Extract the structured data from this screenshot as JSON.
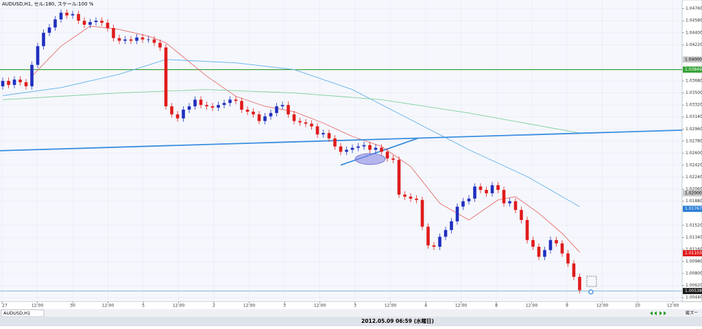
{
  "chart_data": {
    "type": "candlestick",
    "title": "AUDUSD,H1, セル:180, スケール:100 %",
    "status": "2012.05.09 06:59 (水曜日)",
    "tab": "AUDUSD,H1",
    "zoom_label": "縦ズー",
    "up_color": "#1f2fbf",
    "down_color": "#e01b1b",
    "grid": true,
    "ylim": [
      1.0038,
      1.0489
    ],
    "yticks": [
      {
        "value": 1.0476,
        "label": "1.04760"
      },
      {
        "value": 1.0458,
        "label": "1.04580"
      },
      {
        "value": 1.044,
        "label": "1.04400"
      },
      {
        "value": 1.0422,
        "label": "1.04220"
      },
      {
        "value": 1.0368,
        "label": "1.03680"
      },
      {
        "value": 1.035,
        "label": "1.03500"
      },
      {
        "value": 1.0332,
        "label": "1.03320"
      },
      {
        "value": 1.0314,
        "label": "1.03140"
      },
      {
        "value": 1.0296,
        "label": "1.02960"
      },
      {
        "value": 1.0278,
        "label": "1.02780"
      },
      {
        "value": 1.026,
        "label": "1.02600"
      },
      {
        "value": 1.0242,
        "label": "1.02420"
      },
      {
        "value": 1.0224,
        "label": "1.02240"
      },
      {
        "value": 1.0206,
        "label": "1.02060"
      },
      {
        "value": 1.0188,
        "label": "1.01880"
      },
      {
        "value": 1.0152,
        "label": "1.01520"
      },
      {
        "value": 1.0134,
        "label": "1.01340"
      },
      {
        "value": 1.0116,
        "label": "1.01160"
      },
      {
        "value": 1.0098,
        "label": "1.00980"
      },
      {
        "value": 1.008,
        "label": "1.00800"
      },
      {
        "value": 1.0062,
        "label": "1.00620"
      },
      {
        "value": 1.0044,
        "label": "1.00440"
      }
    ],
    "price_labels": [
      {
        "value": 1.04,
        "label": "1.04000",
        "color": "#c8c8c8",
        "text_color": "#000000"
      },
      {
        "value": 1.03849,
        "label": "1.03849",
        "color": "#36a336",
        "text_color": "#ffffff"
      },
      {
        "value": 1.02,
        "label": "1.02000",
        "color": "#c8c8c8",
        "text_color": "#000000"
      },
      {
        "value": 1.01767,
        "label": "1.01767",
        "color": "#2a7fd4",
        "text_color": "#ffffff"
      },
      {
        "value": 1.01103,
        "label": "1.01103",
        "color": "#e01b1b",
        "text_color": "#ffffff"
      },
      {
        "value": 1.00538,
        "label": "1.00538",
        "color": "#1a1a1a",
        "text_color": "#ffffff"
      }
    ],
    "hlines": [
      {
        "value": 1.03849,
        "color": "#2f9a2f"
      },
      {
        "value": 1.00538,
        "color": "#8dbbe0"
      }
    ],
    "categories": [
      "27",
      "12:00",
      "30",
      "12:00",
      "5",
      "12:00",
      "2",
      "12:00",
      "3",
      "12:00",
      "3",
      "12:00",
      "4",
      "12:00",
      "8",
      "12:00",
      "9",
      "12:00",
      "10",
      "12:00"
    ],
    "candles": [
      [
        1.036,
        1.0373,
        1.0355,
        1.0368
      ],
      [
        1.0368,
        1.0373,
        1.0357,
        1.0362
      ],
      [
        1.0362,
        1.0375,
        1.0357,
        1.037
      ],
      [
        1.037,
        1.0375,
        1.0361,
        1.0366
      ],
      [
        1.0366,
        1.0371,
        1.0355,
        1.036
      ],
      [
        1.036,
        1.0397,
        1.0355,
        1.0392
      ],
      [
        1.0392,
        1.0425,
        1.0387,
        1.042
      ],
      [
        1.042,
        1.0445,
        1.0415,
        1.044
      ],
      [
        1.044,
        1.0453,
        1.0435,
        1.0448
      ],
      [
        1.0448,
        1.0465,
        1.0443,
        1.046
      ],
      [
        1.046,
        1.0475,
        1.0455,
        1.047
      ],
      [
        1.047,
        1.0475,
        1.0461,
        1.0466
      ],
      [
        1.0466,
        1.0473,
        1.0461,
        1.0468
      ],
      [
        1.0468,
        1.0473,
        1.0453,
        1.0458
      ],
      [
        1.0458,
        1.0463,
        1.0447,
        1.0452
      ],
      [
        1.0452,
        1.0461,
        1.0447,
        1.0456
      ],
      [
        1.0456,
        1.0463,
        1.0451,
        1.0458
      ],
      [
        1.0458,
        1.0463,
        1.045,
        1.0455
      ],
      [
        1.0455,
        1.046,
        1.0442,
        1.0447
      ],
      [
        1.0447,
        1.0452,
        1.0427,
        1.0432
      ],
      [
        1.0432,
        1.0437,
        1.0423,
        1.0428
      ],
      [
        1.0428,
        1.0435,
        1.0423,
        1.043
      ],
      [
        1.043,
        1.0435,
        1.0423,
        1.0428
      ],
      [
        1.0428,
        1.0438,
        1.0423,
        1.0433
      ],
      [
        1.0433,
        1.0438,
        1.0425,
        1.043
      ],
      [
        1.043,
        1.0435,
        1.0425,
        1.043
      ],
      [
        1.043,
        1.0435,
        1.042,
        1.0425
      ],
      [
        1.0425,
        1.043,
        1.0413,
        1.0418
      ],
      [
        1.0418,
        1.0423,
        1.0325,
        1.033
      ],
      [
        1.033,
        1.0335,
        1.0313,
        1.0318
      ],
      [
        1.0318,
        1.0323,
        1.0307,
        1.0312
      ],
      [
        1.0312,
        1.033,
        1.0307,
        1.0325
      ],
      [
        1.0325,
        1.0335,
        1.032,
        1.033
      ],
      [
        1.033,
        1.0345,
        1.0325,
        1.034
      ],
      [
        1.034,
        1.0345,
        1.0327,
        1.0332
      ],
      [
        1.0332,
        1.0337,
        1.0325,
        1.033
      ],
      [
        1.033,
        1.0335,
        1.0323,
        1.0328
      ],
      [
        1.0328,
        1.0337,
        1.0323,
        1.0332
      ],
      [
        1.0332,
        1.034,
        1.0327,
        1.0335
      ],
      [
        1.0335,
        1.0345,
        1.033,
        1.034
      ],
      [
        1.034,
        1.0345,
        1.0333,
        1.0338
      ],
      [
        1.0338,
        1.0343,
        1.032,
        1.0325
      ],
      [
        1.0325,
        1.033,
        1.0317,
        1.0322
      ],
      [
        1.0322,
        1.0327,
        1.0313,
        1.0318
      ],
      [
        1.0318,
        1.0323,
        1.0303,
        1.0308
      ],
      [
        1.0308,
        1.032,
        1.0303,
        1.0315
      ],
      [
        1.0315,
        1.0325,
        1.031,
        1.032
      ],
      [
        1.032,
        1.0335,
        1.0315,
        1.033
      ],
      [
        1.033,
        1.0337,
        1.0325,
        1.0332
      ],
      [
        1.0332,
        1.0337,
        1.0313,
        1.0318
      ],
      [
        1.0318,
        1.0323,
        1.0303,
        1.0308
      ],
      [
        1.0308,
        1.0313,
        1.0301,
        1.0306
      ],
      [
        1.0306,
        1.0311,
        1.0299,
        1.0304
      ],
      [
        1.0304,
        1.0309,
        1.0295,
        1.03
      ],
      [
        1.03,
        1.0305,
        1.0283,
        1.0288
      ],
      [
        1.0288,
        1.0295,
        1.0283,
        1.029
      ],
      [
        1.029,
        1.0295,
        1.0277,
        1.0282
      ],
      [
        1.0282,
        1.0287,
        1.0265,
        1.027
      ],
      [
        1.027,
        1.0275,
        1.0257,
        1.0262
      ],
      [
        1.0262,
        1.027,
        1.0257,
        1.0265
      ],
      [
        1.0265,
        1.0273,
        1.026,
        1.0268
      ],
      [
        1.0268,
        1.0275,
        1.0263,
        1.027
      ],
      [
        1.027,
        1.0277,
        1.0265,
        1.0272
      ],
      [
        1.0272,
        1.0277,
        1.026,
        1.0265
      ],
      [
        1.0265,
        1.0273,
        1.026,
        1.0268
      ],
      [
        1.0268,
        1.0273,
        1.0257,
        1.0262
      ],
      [
        1.0262,
        1.0267,
        1.0247,
        1.0252
      ],
      [
        1.0252,
        1.0257,
        1.0245,
        1.025
      ],
      [
        1.025,
        1.0255,
        1.0193,
        1.0198
      ],
      [
        1.0198,
        1.0203,
        1.019,
        1.0195
      ],
      [
        1.0195,
        1.02,
        1.0187,
        1.0192
      ],
      [
        1.0192,
        1.0197,
        1.0185,
        1.019
      ],
      [
        1.019,
        1.0195,
        1.0145,
        1.015
      ],
      [
        1.015,
        1.0155,
        1.0117,
        1.0122
      ],
      [
        1.0122,
        1.0127,
        1.0115,
        1.012
      ],
      [
        1.012,
        1.014,
        1.0115,
        1.0135
      ],
      [
        1.0135,
        1.015,
        1.013,
        1.0145
      ],
      [
        1.0145,
        1.0163,
        1.014,
        1.0158
      ],
      [
        1.0158,
        1.0185,
        1.0153,
        1.018
      ],
      [
        1.018,
        1.0193,
        1.0175,
        1.0188
      ],
      [
        1.0188,
        1.0197,
        1.0183,
        1.0192
      ],
      [
        1.0192,
        1.0215,
        1.0187,
        1.021
      ],
      [
        1.021,
        1.0215,
        1.02,
        1.0205
      ],
      [
        1.0205,
        1.021,
        1.0195,
        1.02
      ],
      [
        1.02,
        1.0217,
        1.0195,
        1.0212
      ],
      [
        1.0212,
        1.0217,
        1.02,
        1.0205
      ],
      [
        1.0205,
        1.021,
        1.018,
        1.0185
      ],
      [
        1.0185,
        1.0193,
        1.018,
        1.0188
      ],
      [
        1.0188,
        1.0193,
        1.017,
        1.0175
      ],
      [
        1.0175,
        1.018,
        1.0155,
        1.016
      ],
      [
        1.016,
        1.0165,
        1.0125,
        1.013
      ],
      [
        1.013,
        1.0135,
        1.0115,
        1.012
      ],
      [
        1.012,
        1.0125,
        1.01,
        1.0105
      ],
      [
        1.0105,
        1.012,
        1.01,
        1.0115
      ],
      [
        1.0115,
        1.0135,
        1.011,
        1.013
      ],
      [
        1.013,
        1.0135,
        1.012,
        1.0125
      ],
      [
        1.0125,
        1.013,
        1.0105,
        1.011
      ],
      [
        1.011,
        1.0115,
        1.009,
        1.0095
      ],
      [
        1.0095,
        1.01,
        1.007,
        1.0075
      ],
      [
        1.0075,
        1.008,
        1.005,
        1.0055
      ]
    ],
    "moving_averages": [
      {
        "color": "#e86a6a",
        "points": [
          [
            5,
            1.0375
          ],
          [
            10,
            1.042
          ],
          [
            15,
            1.045
          ],
          [
            20,
            1.0445
          ],
          [
            25,
            1.0435
          ],
          [
            28,
            1.0425
          ],
          [
            35,
            1.0375
          ],
          [
            40,
            1.0345
          ],
          [
            45,
            1.033
          ],
          [
            50,
            1.0322
          ],
          [
            55,
            1.0305
          ],
          [
            60,
            1.0285
          ],
          [
            65,
            1.027
          ],
          [
            70,
            1.024
          ],
          [
            75,
            1.0185
          ],
          [
            80,
            1.016
          ],
          [
            85,
            1.019
          ],
          [
            88,
            1.0195
          ],
          [
            92,
            1.017
          ],
          [
            96,
            1.014
          ],
          [
            99,
            1.0112
          ]
        ]
      },
      {
        "color": "#5fb0e8",
        "points": [
          [
            0,
            1.0346
          ],
          [
            10,
            1.0358
          ],
          [
            20,
            1.0378
          ],
          [
            28,
            1.04
          ],
          [
            40,
            1.0395
          ],
          [
            50,
            1.0385
          ],
          [
            60,
            1.0355
          ],
          [
            70,
            1.031
          ],
          [
            80,
            1.0265
          ],
          [
            90,
            1.0225
          ],
          [
            99,
            1.018
          ]
        ]
      },
      {
        "color": "#7ccf9a",
        "points": [
          [
            0,
            1.034
          ],
          [
            20,
            1.035
          ],
          [
            35,
            1.0355
          ],
          [
            50,
            1.035
          ],
          [
            65,
            1.034
          ],
          [
            80,
            1.032
          ],
          [
            99,
            1.029
          ]
        ]
      }
    ],
    "trendlines": [
      {
        "color": "#3a8ee0",
        "points": [
          [
            -0.47,
            1.02636
          ],
          [
            116.6,
            1.02944
          ]
        ]
      },
      {
        "color": "#3a8ee0",
        "points": [
          [
            58,
            1.02421
          ],
          [
            71.2,
            1.02821
          ]
        ]
      }
    ]
  }
}
